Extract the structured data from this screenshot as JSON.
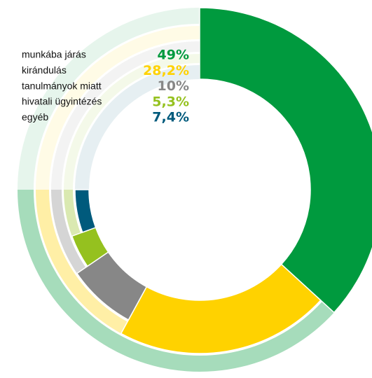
{
  "chart_data": {
    "type": "radial",
    "categories": [
      "munkába járás",
      "kirándulás",
      "tanulmányok miatt",
      "hivatali ügyintézés",
      "egyéb"
    ],
    "values": [
      49,
      28.2,
      10,
      5.3,
      7.4
    ],
    "value_labels": [
      "49%",
      "28,2%",
      "10%",
      "5,3%",
      "7,4%"
    ],
    "colors": [
      "#009a3e",
      "#ffd200",
      "#878787",
      "#95c11f",
      "#005a7c"
    ]
  }
}
